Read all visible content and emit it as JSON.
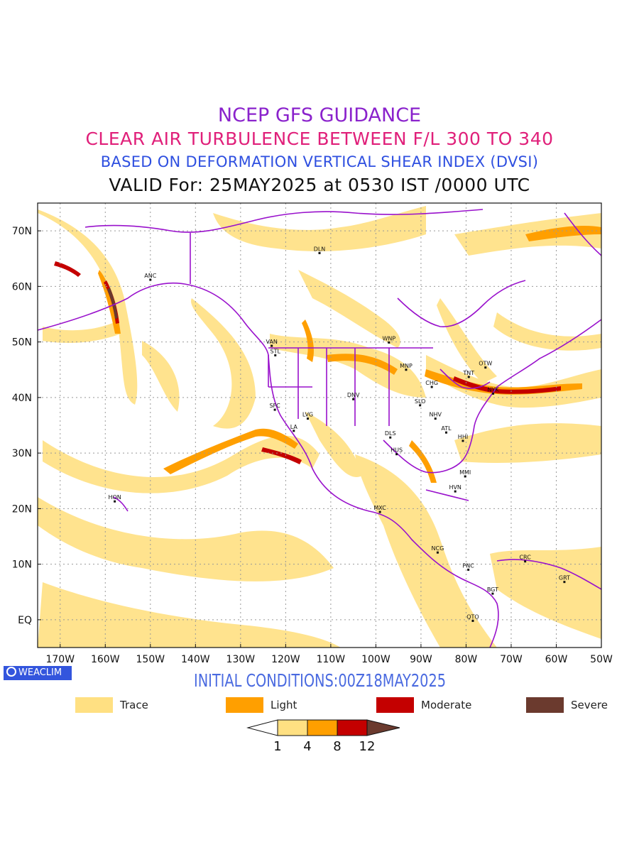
{
  "title": {
    "line1": "NCEP GFS GUIDANCE",
    "line2": "CLEAR AIR TURBULENCE BETWEEN F/L 300 TO 340",
    "line3": "BASED ON DEFORMATION VERTICAL SHEAR INDEX (DVSI)",
    "line4": "VALID For: 25MAY2025 at 0530 IST /0000 UTC",
    "colors": {
      "line1": "#8a22cc",
      "line2": "#e0207a",
      "line3": "#2e4fe0",
      "line4": "#111111"
    }
  },
  "initial_conditions": "INITIAL CONDITIONS:00Z18MAY2025",
  "logo_text": "WEACLIM",
  "axes": {
    "lat_labels": [
      "70N",
      "60N",
      "50N",
      "40N",
      "30N",
      "20N",
      "10N",
      "EQ"
    ],
    "lat_values": [
      70,
      60,
      50,
      40,
      30,
      20,
      10,
      0
    ],
    "lon_labels": [
      "170W",
      "160W",
      "150W",
      "140W",
      "130W",
      "120W",
      "110W",
      "100W",
      "90W",
      "80W",
      "70W",
      "60W",
      "50W"
    ],
    "lon_values": [
      -170,
      -160,
      -150,
      -140,
      -130,
      -120,
      -110,
      -100,
      -90,
      -80,
      -70,
      -60,
      -50
    ],
    "lon_range": [
      -175,
      -50
    ],
    "lat_range": [
      -5,
      75
    ],
    "grid": true
  },
  "stations": [
    {
      "code": "ANC",
      "lon": -150,
      "lat": 61.2
    },
    {
      "code": "DLN",
      "lon": -112.5,
      "lat": 66
    },
    {
      "code": "VAN",
      "lon": -123.1,
      "lat": 49.3
    },
    {
      "code": "STL",
      "lon": -122.3,
      "lat": 47.6
    },
    {
      "code": "WNP",
      "lon": -97.1,
      "lat": 49.9
    },
    {
      "code": "MNP",
      "lon": -93.3,
      "lat": 45
    },
    {
      "code": "TNT",
      "lon": -79.4,
      "lat": 43.7
    },
    {
      "code": "OTW",
      "lon": -75.7,
      "lat": 45.4
    },
    {
      "code": "CHG",
      "lon": -87.6,
      "lat": 41.9
    },
    {
      "code": "NYK",
      "lon": -74,
      "lat": 40.7
    },
    {
      "code": "SFC",
      "lon": -122.4,
      "lat": 37.8
    },
    {
      "code": "DNV",
      "lon": -105,
      "lat": 39.7
    },
    {
      "code": "SLO",
      "lon": -90.2,
      "lat": 38.6
    },
    {
      "code": "LVG",
      "lon": -115.1,
      "lat": 36.2
    },
    {
      "code": "LA",
      "lon": -118.2,
      "lat": 34
    },
    {
      "code": "NHV",
      "lon": -86.8,
      "lat": 36.2
    },
    {
      "code": "ATL",
      "lon": -84.4,
      "lat": 33.7
    },
    {
      "code": "DLS",
      "lon": -96.8,
      "lat": 32.8
    },
    {
      "code": "HHI",
      "lon": -80.7,
      "lat": 32.2
    },
    {
      "code": "HUS",
      "lon": -95.4,
      "lat": 29.8
    },
    {
      "code": "MMI",
      "lon": -80.2,
      "lat": 25.8
    },
    {
      "code": "HVN",
      "lon": -82.4,
      "lat": 23.1
    },
    {
      "code": "HON",
      "lon": -157.9,
      "lat": 21.3
    },
    {
      "code": "MXC",
      "lon": -99.1,
      "lat": 19.4
    },
    {
      "code": "NCG",
      "lon": -86.3,
      "lat": 12.1
    },
    {
      "code": "CRC",
      "lon": -66.9,
      "lat": 10.5
    },
    {
      "code": "PNC",
      "lon": -79.5,
      "lat": 9
    },
    {
      "code": "GRT",
      "lon": -58.2,
      "lat": 6.8
    },
    {
      "code": "BGT",
      "lon": -74.1,
      "lat": 4.7
    },
    {
      "code": "QTO",
      "lon": -78.5,
      "lat": -0.2
    }
  ],
  "legend": [
    {
      "label": "Trace",
      "color": "#ffe082"
    },
    {
      "label": "Light",
      "color": "#ff9f00"
    },
    {
      "label": "Moderate",
      "color": "#c40000"
    },
    {
      "label": "Severe",
      "color": "#6b3a2e"
    }
  ],
  "colorbar": {
    "ticks": [
      "1",
      "4",
      "8",
      "12"
    ],
    "colors": [
      "#ffffff",
      "#ffe082",
      "#ff9f00",
      "#c40000",
      "#6b3a2e"
    ]
  },
  "map_colors": {
    "border": "#9911cc",
    "grid": "#999999"
  }
}
